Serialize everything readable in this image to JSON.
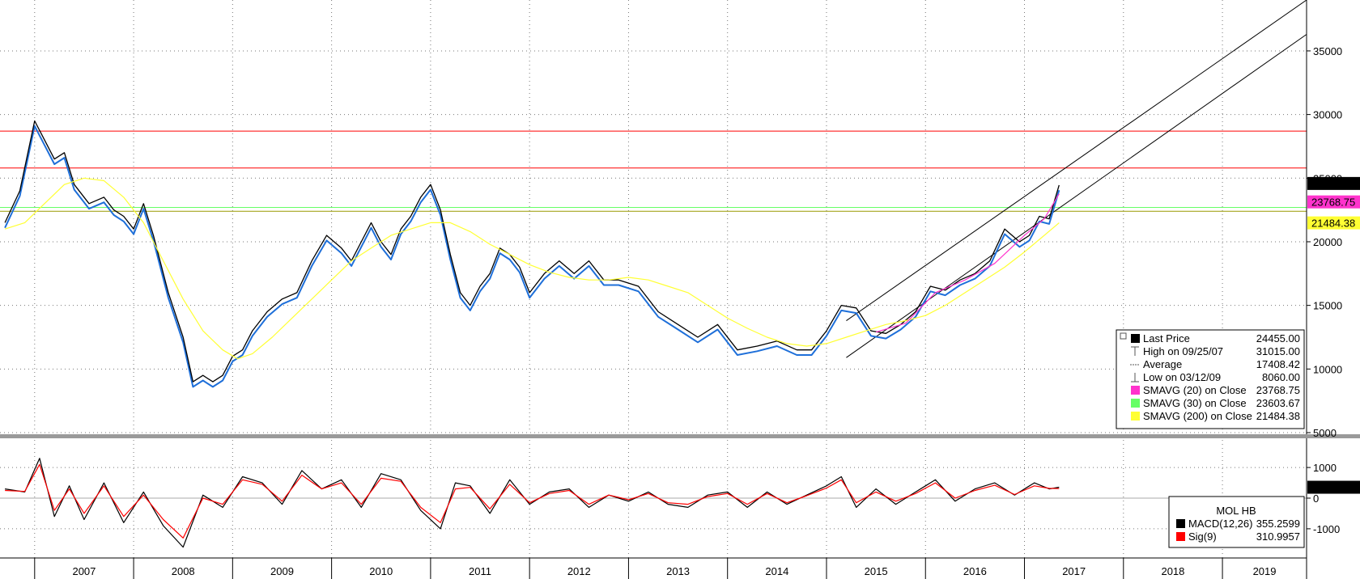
{
  "chart_data": [
    {
      "type": "line",
      "ylim": [
        5000,
        39000
      ],
      "yticks": [
        5000,
        10000,
        15000,
        20000,
        25000,
        30000,
        35000
      ],
      "xlim": [
        2006.65,
        2019.85
      ],
      "grid": true,
      "last_value_tags": [
        {
          "text": "24455.00",
          "value": 24455,
          "color": "#000000",
          "text_color": "#ffffff"
        },
        {
          "text": "23768.75",
          "value": 23768.75,
          "color": "#ff33cc",
          "text_color": "#ffffff"
        },
        {
          "text": "21484.38",
          "value": 21484.38,
          "color": "#ffff33",
          "text_color": "#000000"
        }
      ],
      "horizontal_levels": [
        {
          "value": 28700,
          "color": "#ff0000"
        },
        {
          "value": 25800,
          "color": "#ff0000"
        },
        {
          "value": 22700,
          "color": "#66ff66"
        },
        {
          "value": 22400,
          "color": "#999900"
        }
      ],
      "trend_channel": {
        "upper": {
          "x": [
            2015.2,
            2019.85
          ],
          "y": [
            13800,
            39000
          ]
        },
        "lower": {
          "x": [
            2015.2,
            2019.85
          ],
          "y": [
            10900,
            36300
          ]
        }
      },
      "series": [
        {
          "name": "Last Price",
          "color": "#000000",
          "x": [
            2006.7,
            2006.85,
            2007.0,
            2007.1,
            2007.2,
            2007.3,
            2007.4,
            2007.55,
            2007.7,
            2007.8,
            2007.9,
            2008.0,
            2008.1,
            2008.2,
            2008.35,
            2008.5,
            2008.6,
            2008.7,
            2008.8,
            2008.9,
            2009.0,
            2009.1,
            2009.2,
            2009.35,
            2009.5,
            2009.65,
            2009.8,
            2009.95,
            2010.1,
            2010.2,
            2010.3,
            2010.4,
            2010.5,
            2010.6,
            2010.7,
            2010.8,
            2010.9,
            2011.0,
            2011.1,
            2011.2,
            2011.3,
            2011.4,
            2011.5,
            2011.6,
            2011.7,
            2011.8,
            2011.9,
            2012.0,
            2012.15,
            2012.3,
            2012.45,
            2012.6,
            2012.75,
            2012.9,
            2013.1,
            2013.3,
            2013.5,
            2013.7,
            2013.9,
            2014.1,
            2014.3,
            2014.5,
            2014.7,
            2014.85,
            2015.0,
            2015.15,
            2015.3,
            2015.45,
            2015.6,
            2015.75,
            2015.9,
            2016.05,
            2016.2,
            2016.35,
            2016.5,
            2016.65,
            2016.8,
            2016.95,
            2017.05,
            2017.15,
            2017.25,
            2017.35
          ],
          "y": [
            21500,
            24000,
            29500,
            28000,
            26500,
            27000,
            24500,
            23000,
            23500,
            22500,
            22000,
            21000,
            23000,
            20500,
            16000,
            12500,
            9000,
            9500,
            9000,
            9500,
            11000,
            11500,
            13000,
            14500,
            15500,
            16000,
            18500,
            20500,
            19500,
            18500,
            20000,
            21500,
            20000,
            19000,
            21000,
            22000,
            23500,
            24500,
            22500,
            19000,
            16000,
            15000,
            16500,
            17500,
            19500,
            19000,
            18000,
            16000,
            17500,
            18500,
            17500,
            18500,
            17000,
            17000,
            16500,
            14500,
            13500,
            12500,
            13500,
            11500,
            11800,
            12200,
            11500,
            11500,
            13000,
            15000,
            14800,
            13000,
            12800,
            13500,
            14500,
            16500,
            16200,
            17000,
            17500,
            18500,
            21000,
            20000,
            20500,
            22000,
            21800,
            24455
          ]
        },
        {
          "name": "SMAVG (200) on Close",
          "color": "#ffff33",
          "x": [
            2006.7,
            2006.9,
            2007.1,
            2007.3,
            2007.5,
            2007.7,
            2007.9,
            2008.1,
            2008.3,
            2008.5,
            2008.7,
            2008.9,
            2009.05,
            2009.2,
            2009.4,
            2009.6,
            2009.8,
            2010.0,
            2010.2,
            2010.4,
            2010.6,
            2010.8,
            2011.0,
            2011.2,
            2011.4,
            2011.6,
            2011.8,
            2012.0,
            2012.2,
            2012.4,
            2012.6,
            2012.8,
            2013.0,
            2013.2,
            2013.4,
            2013.6,
            2013.8,
            2014.0,
            2014.2,
            2014.4,
            2014.6,
            2014.8,
            2015.0,
            2015.2,
            2015.4,
            2015.6,
            2015.8,
            2016.0,
            2016.2,
            2016.4,
            2016.6,
            2016.8,
            2017.0,
            2017.2,
            2017.35
          ],
          "y": [
            21000,
            21500,
            23000,
            24500,
            25000,
            24800,
            23500,
            21500,
            18500,
            15500,
            13000,
            11500,
            10800,
            11200,
            12500,
            14000,
            15500,
            17000,
            18500,
            19500,
            20500,
            21000,
            21500,
            21500,
            20800,
            19800,
            19000,
            18200,
            17600,
            17200,
            17000,
            17000,
            17200,
            17000,
            16500,
            16000,
            15000,
            14000,
            13200,
            12500,
            12000,
            11800,
            12000,
            12500,
            13000,
            13500,
            13800,
            14200,
            15000,
            16000,
            17000,
            18000,
            19200,
            20500,
            21484
          ]
        },
        {
          "name": "SMAVG (20) on Close",
          "color": "#ff33cc",
          "x": [
            2015.5,
            2015.8,
            2016.1,
            2016.4,
            2016.7,
            2017.0,
            2017.2,
            2017.35
          ],
          "y": [
            12900,
            13600,
            16000,
            17000,
            18300,
            20500,
            21800,
            23768
          ]
        }
      ]
    },
    {
      "type": "line",
      "ylim": [
        -1900,
        1900
      ],
      "yticks": [
        -1000,
        0,
        1000
      ],
      "last_value_tag": {
        "text": "355.2599",
        "value": 355.2599
      },
      "series": [
        {
          "name": "MACD(12,26)",
          "color": "#000000",
          "x": [
            2006.7,
            2006.9,
            2007.05,
            2007.2,
            2007.35,
            2007.5,
            2007.7,
            2007.9,
            2008.1,
            2008.3,
            2008.5,
            2008.7,
            2008.9,
            2009.1,
            2009.3,
            2009.5,
            2009.7,
            2009.9,
            2010.1,
            2010.3,
            2010.5,
            2010.7,
            2010.9,
            2011.1,
            2011.25,
            2011.4,
            2011.6,
            2011.8,
            2012.0,
            2012.2,
            2012.4,
            2012.6,
            2012.8,
            2013.0,
            2013.2,
            2013.4,
            2013.6,
            2013.8,
            2014.0,
            2014.2,
            2014.4,
            2014.6,
            2014.8,
            2015.0,
            2015.15,
            2015.3,
            2015.5,
            2015.7,
            2015.9,
            2016.1,
            2016.3,
            2016.5,
            2016.7,
            2016.9,
            2017.1,
            2017.25,
            2017.35
          ],
          "y": [
            300,
            200,
            1300,
            -600,
            400,
            -700,
            500,
            -800,
            200,
            -900,
            -1600,
            100,
            -300,
            700,
            500,
            -200,
            900,
            300,
            600,
            -300,
            800,
            600,
            -400,
            -1000,
            500,
            400,
            -500,
            600,
            -200,
            200,
            300,
            -300,
            100,
            -100,
            200,
            -200,
            -300,
            100,
            200,
            -300,
            200,
            -200,
            100,
            400,
            700,
            -300,
            300,
            -200,
            200,
            600,
            -100,
            300,
            500,
            100,
            500,
            300,
            355
          ]
        },
        {
          "name": "Sig(9)",
          "color": "#ff0000",
          "x": [
            2006.7,
            2006.9,
            2007.05,
            2007.2,
            2007.35,
            2007.5,
            2007.7,
            2007.9,
            2008.1,
            2008.3,
            2008.5,
            2008.7,
            2008.9,
            2009.1,
            2009.3,
            2009.5,
            2009.7,
            2009.9,
            2010.1,
            2010.3,
            2010.5,
            2010.7,
            2010.9,
            2011.1,
            2011.25,
            2011.4,
            2011.6,
            2011.8,
            2012.0,
            2012.2,
            2012.4,
            2012.6,
            2012.8,
            2013.0,
            2013.2,
            2013.4,
            2013.6,
            2013.8,
            2014.0,
            2014.2,
            2014.4,
            2014.6,
            2014.8,
            2015.0,
            2015.15,
            2015.3,
            2015.5,
            2015.7,
            2015.9,
            2016.1,
            2016.3,
            2016.5,
            2016.7,
            2016.9,
            2017.1,
            2017.25,
            2017.35
          ],
          "y": [
            250,
            220,
            1100,
            -400,
            300,
            -500,
            400,
            -600,
            100,
            -700,
            -1300,
            0,
            -200,
            600,
            450,
            -100,
            750,
            300,
            500,
            -200,
            650,
            550,
            -300,
            -800,
            300,
            350,
            -350,
            450,
            -150,
            150,
            250,
            -200,
            100,
            -50,
            150,
            -150,
            -200,
            50,
            150,
            -200,
            150,
            -150,
            80,
            330,
            600,
            -150,
            200,
            -100,
            150,
            500,
            0,
            250,
            420,
            120,
            400,
            320,
            311
          ]
        }
      ]
    }
  ],
  "x_tick_labels": [
    "2007",
    "2008",
    "2009",
    "2010",
    "2011",
    "2012",
    "2013",
    "2014",
    "2015",
    "2016",
    "2017",
    "2018",
    "2019"
  ],
  "main_legend": [
    {
      "label": "Last Price",
      "value": "24455.00",
      "swatch": "#000000"
    },
    {
      "label": "High on 09/25/07",
      "value": "31015.00",
      "swatch": "high-marker"
    },
    {
      "label": "Average",
      "value": "17408.42",
      "swatch": "average-marker"
    },
    {
      "label": "Low on 03/12/09",
      "value": "8060.00",
      "swatch": "low-marker"
    },
    {
      "label": "SMAVG (20) on Close",
      "value": "23768.75",
      "swatch": "#ff33cc"
    },
    {
      "label": "SMAVG (30) on Close",
      "value": "23603.67",
      "swatch": "#66ff66"
    },
    {
      "label": "SMAVG (200) on Close",
      "value": "21484.38",
      "swatch": "#ffff33"
    }
  ],
  "macd_legend": {
    "title": "MOL HB",
    "items": [
      {
        "label": "MACD(12,26)",
        "value": "355.2599",
        "swatch": "#000000"
      },
      {
        "label": "Sig(9)",
        "value": "310.9957",
        "swatch": "#ff0000"
      }
    ]
  }
}
